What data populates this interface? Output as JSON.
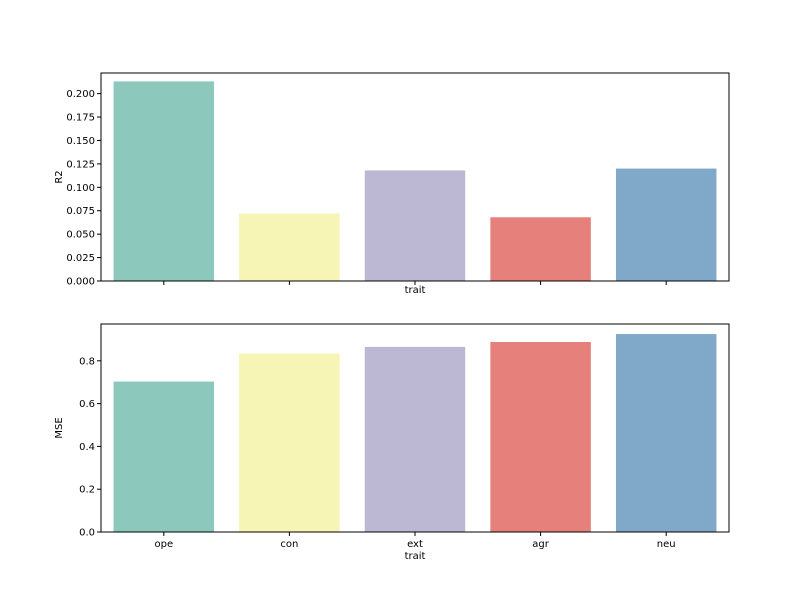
{
  "chart_data": [
    {
      "type": "bar",
      "categories": [
        "ope",
        "con",
        "ext",
        "agr",
        "neu"
      ],
      "values": [
        0.213,
        0.072,
        0.118,
        0.068,
        0.12
      ],
      "colors": [
        "#8dc8bc",
        "#f6f5b5",
        "#bcb8d4",
        "#e5807a",
        "#7fa8c9"
      ],
      "title": "",
      "xlabel": "trait",
      "ylabel": "R2",
      "ylim": [
        0,
        0.222
      ],
      "yticks": [
        0.0,
        0.025,
        0.05,
        0.075,
        0.1,
        0.125,
        0.15,
        0.175,
        0.2
      ],
      "ytick_labels": [
        "0.000",
        "0.025",
        "0.050",
        "0.075",
        "0.100",
        "0.125",
        "0.150",
        "0.175",
        "0.200"
      ],
      "show_xtick_labels": false,
      "grid": false
    },
    {
      "type": "bar",
      "categories": [
        "ope",
        "con",
        "ext",
        "agr",
        "neu"
      ],
      "values": [
        0.703,
        0.834,
        0.865,
        0.888,
        0.925
      ],
      "colors": [
        "#8dc8bc",
        "#f6f5b5",
        "#bcb8d4",
        "#e5807a",
        "#7fa8c9"
      ],
      "title": "",
      "xlabel": "trait",
      "ylabel": "MSE",
      "ylim": [
        0,
        0.972
      ],
      "yticks": [
        0.0,
        0.2,
        0.4,
        0.6,
        0.8
      ],
      "ytick_labels": [
        "0.0",
        "0.2",
        "0.4",
        "0.6",
        "0.8"
      ],
      "show_xtick_labels": true,
      "grid": false
    }
  ]
}
